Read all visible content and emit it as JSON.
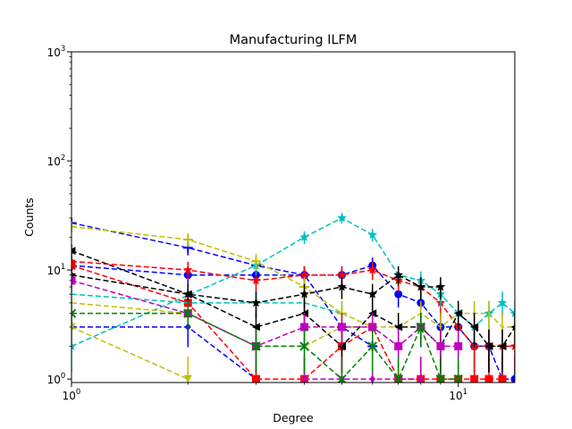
{
  "chart_data": {
    "type": "line",
    "title": "Manufacturing ILFM",
    "xlabel": "Degree",
    "ylabel": "Counts",
    "xscale": "log",
    "yscale": "log",
    "xlim": [
      1,
      14
    ],
    "ylim": [
      0.93,
      1000
    ],
    "grid": false,
    "legend": "none",
    "x_ticks": [
      {
        "value": 1,
        "label": "10",
        "exp": "0"
      },
      {
        "value": 10,
        "label": "10",
        "exp": "1"
      }
    ],
    "y_ticks": [
      {
        "value": 1,
        "label": "10",
        "exp": "0"
      },
      {
        "value": 10,
        "label": "10",
        "exp": "1"
      },
      {
        "value": 100,
        "label": "10",
        "exp": "2"
      },
      {
        "value": 1000,
        "label": "10",
        "exp": "3"
      }
    ],
    "series": [
      {
        "color": "#0000ff",
        "marker": "plus",
        "x": [
          1,
          2,
          3,
          4,
          5,
          6
        ],
        "y": [
          27,
          16,
          11,
          9,
          3,
          2
        ]
      },
      {
        "color": "#0000ff",
        "marker": "circle",
        "x": [
          1,
          2,
          3,
          4,
          5,
          6,
          7,
          8,
          9,
          10,
          11,
          12,
          13,
          14
        ],
        "y": [
          11,
          9,
          9,
          9,
          9,
          11,
          6,
          5,
          3,
          3,
          2,
          2,
          1,
          1
        ]
      },
      {
        "color": "#0000ff",
        "marker": "diamond",
        "x": [
          1,
          2,
          3
        ],
        "y": [
          3,
          3,
          1
        ]
      },
      {
        "color": "#ff0000",
        "marker": "star",
        "x": [
          1,
          2,
          3,
          4,
          5,
          6,
          7,
          8,
          9,
          10,
          11,
          12,
          13,
          14
        ],
        "y": [
          12,
          10,
          8,
          9,
          9,
          10,
          8,
          7,
          5,
          3,
          2,
          2,
          2,
          2
        ]
      },
      {
        "color": "#ff0000",
        "marker": "square",
        "x": [
          1,
          2,
          3,
          4,
          5,
          6,
          7,
          8,
          9,
          10,
          11,
          12,
          13
        ],
        "y": [
          11,
          5,
          1,
          1,
          2,
          3,
          1,
          1,
          1,
          1,
          1,
          1,
          1
        ]
      },
      {
        "color": "#00bfbf",
        "marker": "star",
        "x": [
          1,
          3,
          4,
          5,
          6,
          7,
          8,
          9,
          10,
          11,
          12,
          13,
          14
        ],
        "y": [
          2,
          11,
          20,
          30,
          21,
          9,
          8,
          6,
          4,
          3,
          4,
          5,
          4
        ]
      },
      {
        "color": "#00bfbf",
        "marker": "none",
        "x": [
          1,
          2,
          3,
          4,
          5
        ],
        "y": [
          6,
          5,
          5,
          5,
          4
        ]
      },
      {
        "color": "#bfbf00",
        "marker": "plus",
        "x": [
          1,
          2,
          3,
          4,
          5,
          6
        ],
        "y": [
          25,
          19,
          12,
          7,
          4,
          3
        ]
      },
      {
        "color": "#bfbf00",
        "marker": "down-triangle",
        "x": [
          1,
          2
        ],
        "y": [
          3,
          1
        ]
      },
      {
        "color": "#bfbf00",
        "marker": "none",
        "x": [
          1,
          2,
          3,
          4,
          5,
          6,
          7,
          8,
          9,
          10,
          11,
          12,
          13,
          14
        ],
        "y": [
          5,
          4,
          2,
          2,
          3,
          3,
          3,
          4,
          3,
          4,
          4,
          4,
          3,
          3
        ]
      },
      {
        "color": "#000000",
        "marker": "star",
        "x": [
          1,
          2,
          3,
          4,
          5,
          6,
          7,
          8,
          9
        ],
        "y": [
          9,
          6,
          5,
          6,
          7,
          6,
          9,
          7,
          7
        ]
      },
      {
        "color": "#000000",
        "marker": "left-triangle",
        "x": [
          1,
          2,
          3,
          4,
          5,
          6,
          7,
          8,
          9,
          10,
          11,
          12,
          13,
          14
        ],
        "y": [
          15,
          6,
          3,
          4,
          2,
          4,
          3,
          3,
          2,
          4,
          3,
          2,
          2,
          3
        ]
      },
      {
        "color": "#bf00bf",
        "marker": "square",
        "x": [
          1,
          2,
          3,
          4,
          5,
          6,
          7,
          8,
          9,
          10
        ],
        "y": [
          8,
          4,
          2,
          3,
          3,
          3,
          2,
          3,
          2,
          2
        ]
      },
      {
        "color": "#bf00bf",
        "marker": "diamond",
        "x": [
          4,
          5,
          6,
          7,
          8
        ],
        "y": [
          1,
          1,
          1,
          1,
          1
        ]
      },
      {
        "color": "#008000",
        "marker": "x",
        "x": [
          1,
          2,
          3,
          4,
          5,
          6,
          7,
          8,
          9,
          10
        ],
        "y": [
          4,
          4,
          2,
          2,
          1,
          2,
          1,
          3,
          1,
          1
        ]
      }
    ]
  }
}
